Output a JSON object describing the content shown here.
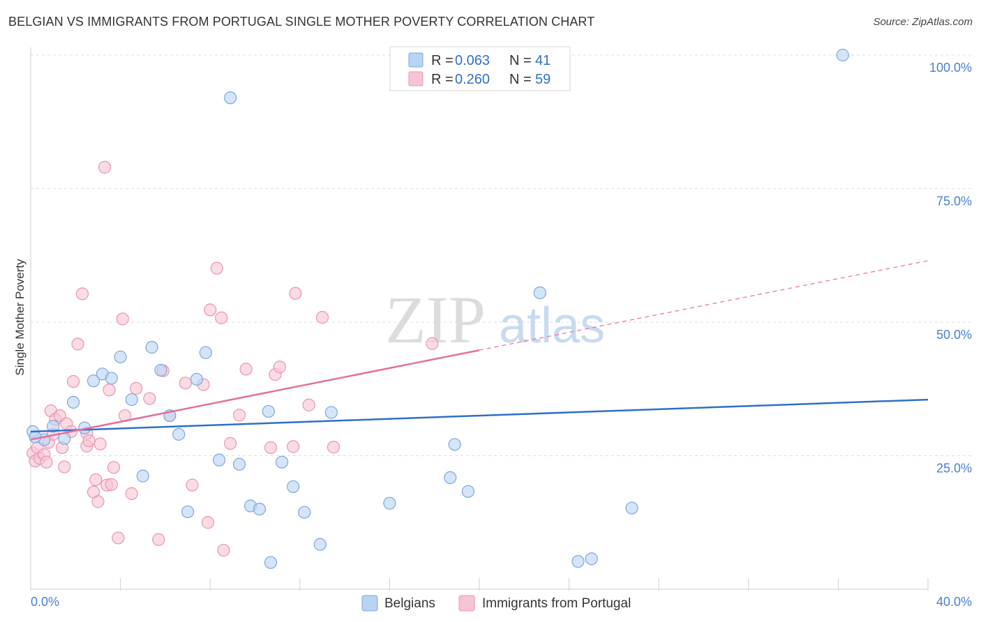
{
  "header": {
    "title": "BELGIAN VS IMMIGRANTS FROM PORTUGAL SINGLE MOTHER POVERTY CORRELATION CHART",
    "source": "Source: ZipAtlas.com"
  },
  "watermark": {
    "zip": "ZIP",
    "atlas": "atlas"
  },
  "legend": {
    "r_label": "R =",
    "n_label": "N =",
    "entries": [
      {
        "r": "0.063",
        "n": "41"
      },
      {
        "r": "0.260",
        "n": "59"
      }
    ]
  },
  "colors": {
    "belgians_fill": "#b9d3f3",
    "belgians_stroke": "#7ba7dd",
    "belgians_line": "#2f6fca",
    "portugal_fill": "#f7c4d3",
    "portugal_stroke": "#ec93b0",
    "portugal_line": "#e3709a",
    "tick_text": "#4a7fcf",
    "grid": "#dddddd"
  },
  "chart_data": {
    "type": "scatter",
    "title": "BELGIAN VS IMMIGRANTS FROM PORTUGAL SINGLE MOTHER POVERTY CORRELATION CHART",
    "xlabel": "",
    "ylabel": "Single Mother Poverty",
    "xlim": [
      0,
      40
    ],
    "ylim": [
      0,
      100
    ],
    "x_tick_labels": [
      "0.0%",
      "40.0%"
    ],
    "y_ticks": [
      25,
      50,
      75,
      100
    ],
    "y_tick_labels": [
      "25.0%",
      "50.0%",
      "75.0%",
      "100.0%"
    ],
    "grid": true,
    "legend_position": "top-center",
    "series": [
      {
        "name": "Belgians",
        "r": 0.063,
        "n": 41,
        "trend": {
          "x": [
            0,
            40
          ],
          "y": [
            29.5,
            35.5
          ],
          "dashed_from": null
        },
        "points": [
          [
            0.1,
            29.5
          ],
          [
            0.6,
            28.0
          ],
          [
            1.0,
            30.5
          ],
          [
            1.5,
            28.2
          ],
          [
            1.9,
            35.0
          ],
          [
            2.4,
            30.2
          ],
          [
            2.8,
            39.0
          ],
          [
            3.2,
            40.3
          ],
          [
            3.6,
            39.5
          ],
          [
            4.0,
            43.5
          ],
          [
            4.5,
            35.5
          ],
          [
            5.0,
            21.2
          ],
          [
            5.4,
            45.3
          ],
          [
            5.8,
            41.0
          ],
          [
            6.2,
            32.5
          ],
          [
            6.6,
            29.0
          ],
          [
            7.0,
            14.5
          ],
          [
            7.4,
            39.3
          ],
          [
            7.8,
            44.3
          ],
          [
            8.4,
            24.2
          ],
          [
            8.9,
            92.0
          ],
          [
            9.3,
            23.4
          ],
          [
            9.8,
            15.6
          ],
          [
            10.2,
            15.0
          ],
          [
            10.6,
            33.3
          ],
          [
            10.7,
            5.0
          ],
          [
            11.2,
            23.8
          ],
          [
            11.7,
            19.2
          ],
          [
            12.2,
            14.4
          ],
          [
            12.9,
            8.4
          ],
          [
            13.4,
            33.1
          ],
          [
            16.0,
            16.1
          ],
          [
            18.7,
            20.9
          ],
          [
            18.9,
            27.1
          ],
          [
            19.5,
            18.3
          ],
          [
            22.7,
            55.5
          ],
          [
            24.4,
            5.2
          ],
          [
            25.0,
            5.7
          ],
          [
            26.8,
            15.2
          ],
          [
            36.2,
            100.0
          ],
          [
            0.2,
            28.5
          ]
        ]
      },
      {
        "name": "Immigrants from Portugal",
        "r": 0.26,
        "n": 59,
        "trend": {
          "x": [
            0,
            40
          ],
          "y": [
            28.0,
            61.5
          ],
          "dashed_from": 20
        },
        "points": [
          [
            0.1,
            25.5
          ],
          [
            0.2,
            24.0
          ],
          [
            0.3,
            26.5
          ],
          [
            0.4,
            24.5
          ],
          [
            0.6,
            25.2
          ],
          [
            0.7,
            23.8
          ],
          [
            0.8,
            27.5
          ],
          [
            0.9,
            33.4
          ],
          [
            1.0,
            29.0
          ],
          [
            1.1,
            31.8
          ],
          [
            1.3,
            32.5
          ],
          [
            1.4,
            26.5
          ],
          [
            1.5,
            22.9
          ],
          [
            1.6,
            31.0
          ],
          [
            1.8,
            29.5
          ],
          [
            1.9,
            38.9
          ],
          [
            2.1,
            45.9
          ],
          [
            2.3,
            55.3
          ],
          [
            2.5,
            29.2
          ],
          [
            2.5,
            26.8
          ],
          [
            2.6,
            27.8
          ],
          [
            2.8,
            18.2
          ],
          [
            2.9,
            20.5
          ],
          [
            3.0,
            16.4
          ],
          [
            3.1,
            27.2
          ],
          [
            3.3,
            79.0
          ],
          [
            3.4,
            19.5
          ],
          [
            3.5,
            37.3
          ],
          [
            3.6,
            19.6
          ],
          [
            3.7,
            22.8
          ],
          [
            3.9,
            9.6
          ],
          [
            4.1,
            50.6
          ],
          [
            4.2,
            32.5
          ],
          [
            4.5,
            17.9
          ],
          [
            4.7,
            37.6
          ],
          [
            5.3,
            35.7
          ],
          [
            5.7,
            9.3
          ],
          [
            5.9,
            40.9
          ],
          [
            6.2,
            32.5
          ],
          [
            6.9,
            38.6
          ],
          [
            7.2,
            19.5
          ],
          [
            7.7,
            38.3
          ],
          [
            7.9,
            12.5
          ],
          [
            8.0,
            52.3
          ],
          [
            8.3,
            60.1
          ],
          [
            8.5,
            50.8
          ],
          [
            8.6,
            7.3
          ],
          [
            8.9,
            27.3
          ],
          [
            9.3,
            32.6
          ],
          [
            9.6,
            41.2
          ],
          [
            10.7,
            26.5
          ],
          [
            10.9,
            40.2
          ],
          [
            11.1,
            41.6
          ],
          [
            11.7,
            26.7
          ],
          [
            11.8,
            55.4
          ],
          [
            12.4,
            34.5
          ],
          [
            13.0,
            50.9
          ],
          [
            13.5,
            26.6
          ],
          [
            17.9,
            46.0
          ]
        ]
      }
    ]
  },
  "bottom_legend": [
    "Belgians",
    "Immigrants from Portugal"
  ]
}
